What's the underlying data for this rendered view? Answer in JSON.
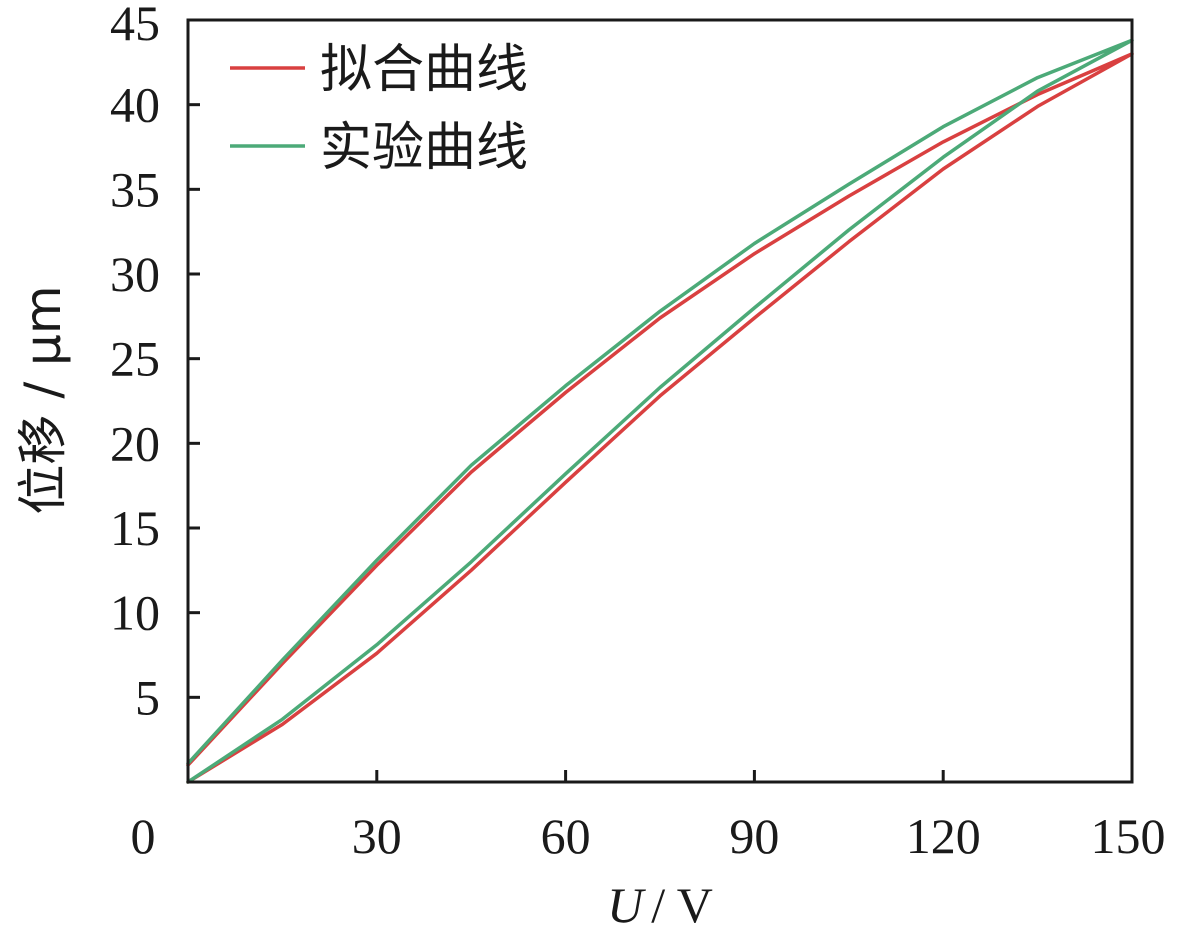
{
  "chart_data": {
    "type": "line",
    "xlabel_var": "U",
    "xlabel_unit": "/ V",
    "ylabel": "位移 / μm",
    "xlim": [
      0,
      150
    ],
    "ylim": [
      0,
      45
    ],
    "x_ticks": [
      0,
      30,
      60,
      90,
      120,
      150
    ],
    "y_ticks": [
      5,
      10,
      15,
      20,
      25,
      30,
      35,
      40,
      45
    ],
    "grid": false,
    "legend_position": "top-left",
    "series": [
      {
        "name": "拟合曲线",
        "color": "#d94040",
        "x": [
          0,
          15,
          30,
          45,
          60,
          75,
          90,
          105,
          120,
          135,
          150,
          135,
          120,
          105,
          90,
          75,
          60,
          45,
          30,
          15,
          0
        ],
        "y": [
          0,
          3.4,
          7.6,
          12.5,
          17.7,
          22.8,
          27.4,
          31.9,
          36.2,
          39.9,
          43.0,
          40.6,
          37.8,
          34.6,
          31.2,
          27.4,
          23.0,
          18.3,
          12.8,
          7.0,
          1.0
        ]
      },
      {
        "name": "实验曲线",
        "color": "#4caa78",
        "x": [
          0,
          15,
          30,
          45,
          60,
          75,
          90,
          105,
          120,
          135,
          150,
          135,
          120,
          105,
          90,
          75,
          60,
          45,
          30,
          15,
          0
        ],
        "y": [
          0,
          3.7,
          8.1,
          13.0,
          18.2,
          23.3,
          28.0,
          32.6,
          36.9,
          40.8,
          43.8,
          41.6,
          38.7,
          35.3,
          31.8,
          27.8,
          23.4,
          18.7,
          13.1,
          7.2,
          1.1
        ]
      }
    ]
  }
}
